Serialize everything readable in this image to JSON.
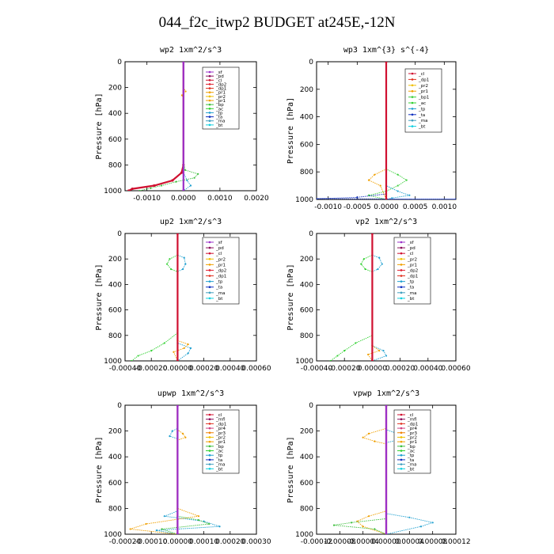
{
  "title": "044_f2c_itwp2  BUDGET at245E,-12N",
  "colors": {
    "sf": "#9b30c8",
    "pd": "#8a0c5a",
    "cl": "#d01030",
    "dp2": "#e02030",
    "dp1": "#e03020",
    "pr1": "#f0a000",
    "pr2": "#f0c000",
    "bp": "#40c040",
    "ac": "#30d030",
    "tp": "#20a0d0",
    "ta": "#1030c0",
    "ma": "#40a0c0",
    "bt": "#10d0e0",
    "bp1": "#40d040",
    "pr4": "#d04080",
    "pr3": "#f08000",
    "mfl": "#8a0c5a",
    "pr5": "#f0b040"
  },
  "chart_data": [
    {
      "type": "line",
      "title": "wp2   1xm^2/s^3",
      "ylabel": "Pressure [hPa]",
      "ylim": [
        1000,
        0
      ],
      "yticks": [
        0,
        200,
        400,
        600,
        800,
        1000
      ],
      "xlim": [
        -0.0016,
        0.002
      ],
      "xticks": [
        "-0.0010",
        "0.0000",
        "0.0010",
        "0.0020"
      ],
      "xtick_values": [
        -0.001,
        0,
        0.001,
        0.002
      ],
      "legend": [
        "_sf",
        "_pd",
        "_cl",
        "_dp2",
        "_dp1",
        "_pr1",
        "_pr2",
        "_pr1",
        "_bp",
        "_ac",
        "_tp",
        "_ta",
        "_ma",
        "_bt"
      ],
      "series": [
        {
          "key": "bp",
          "points": [
            [
              0,
              0
            ],
            [
              0,
              780
            ],
            [
              5e-05,
              840
            ],
            [
              0.0004,
              870
            ],
            [
              0.0003,
              900
            ],
            [
              -0.0002,
              930
            ],
            [
              -0.0006,
              960
            ],
            [
              -0.0009,
              980
            ],
            [
              -0.0012,
              1000
            ]
          ]
        },
        {
          "key": "cl",
          "points": [
            [
              0,
              0
            ],
            [
              0,
              800
            ],
            [
              -5e-05,
              860
            ],
            [
              -0.0003,
              920
            ],
            [
              -0.0008,
              960
            ],
            [
              -0.0014,
              985
            ],
            [
              -0.0015,
              1000
            ]
          ]
        },
        {
          "key": "tp",
          "points": [
            [
              0,
              0
            ],
            [
              0,
              860
            ],
            [
              0.0001,
              920
            ],
            [
              0.0002,
              960
            ],
            [
              0,
              1000
            ]
          ]
        },
        {
          "key": "pr1",
          "points": [
            [
              0,
              0
            ],
            [
              0,
              200
            ],
            [
              6e-05,
              230
            ],
            [
              -4e-05,
              260
            ],
            [
              0,
              290
            ],
            [
              0,
              1000
            ]
          ]
        },
        {
          "key": "sf",
          "points": [
            [
              0,
              0
            ],
            [
              0,
              1000
            ]
          ]
        }
      ]
    },
    {
      "type": "line",
      "title": "wp3   1xm^{3} s^{-4}",
      "ylabel": "Pressure [hPa]",
      "ylim": [
        1000,
        0
      ],
      "yticks": [
        0,
        200,
        400,
        600,
        800,
        1000
      ],
      "xlim": [
        -0.0012,
        0.0012
      ],
      "xticks": [
        "-0.0010",
        "-0.0005",
        "0.0000",
        "0.0005",
        "0.0010"
      ],
      "xtick_values": [
        -0.001,
        -0.0005,
        0,
        0.0005,
        0.001
      ],
      "legend": [
        "_cl",
        "_dp1",
        "_pr2",
        "_pr1",
        "_bp1",
        "_ac",
        "_tp",
        "_ta",
        "_ma",
        "_bt"
      ],
      "series": [
        {
          "key": "bp1",
          "points": [
            [
              0,
              0
            ],
            [
              0,
              780
            ],
            [
              0.0002,
              820
            ],
            [
              0.00035,
              860
            ],
            [
              0.0002,
              900
            ],
            [
              0,
              940
            ],
            [
              -0.0003,
              970
            ],
            [
              0,
              1000
            ]
          ]
        },
        {
          "key": "pr1",
          "points": [
            [
              0,
              0
            ],
            [
              0,
              780
            ],
            [
              -0.0002,
              820
            ],
            [
              -0.0003,
              860
            ],
            [
              -0.0001,
              900
            ],
            [
              0,
              1000
            ]
          ]
        },
        {
          "key": "tp",
          "points": [
            [
              0,
              0
            ],
            [
              0,
              900
            ],
            [
              0.0002,
              940
            ],
            [
              0.0004,
              970
            ],
            [
              0.0001,
              990
            ],
            [
              0,
              1000
            ]
          ]
        },
        {
          "key": "ta",
          "points": [
            [
              0,
              0
            ],
            [
              0,
              960
            ],
            [
              -0.0005,
              985
            ],
            [
              -0.0012,
              995
            ],
            [
              0.0012,
              998
            ],
            [
              0,
              1000
            ]
          ]
        },
        {
          "key": "cl",
          "points": [
            [
              0,
              0
            ],
            [
              0,
              1000
            ]
          ]
        }
      ]
    },
    {
      "type": "line",
      "title": "up2   1xm^2/s^3",
      "ylabel": "Pressure [hPa]",
      "ylim": [
        1000,
        0
      ],
      "yticks": [
        0,
        200,
        400,
        600,
        800,
        1000
      ],
      "xlim": [
        -0.0004,
        0.0006
      ],
      "xticks": [
        "-0.00040",
        "-0.00020",
        "0.00000",
        "0.00020",
        "0.00040",
        "0.00060"
      ],
      "xtick_values": [
        -0.0004,
        -0.0002,
        0,
        0.0002,
        0.0004,
        0.0006
      ],
      "legend": [
        "_sf",
        "_pd",
        "_cl",
        "_pr2",
        "_pr1",
        "_dp2",
        "_dp1",
        "_tp",
        "_ta",
        "_ma",
        "_bt"
      ],
      "series": [
        {
          "key": "ac",
          "points": [
            [
              0,
              0
            ],
            [
              0,
              170
            ],
            [
              -6e-05,
              200
            ],
            [
              -8e-05,
              240
            ],
            [
              -5e-05,
              280
            ],
            [
              0,
              300
            ],
            [
              0,
              780
            ],
            [
              -0.0001,
              860
            ],
            [
              -0.0002,
              920
            ],
            [
              -0.0003,
              960
            ],
            [
              -0.00035,
              1000
            ]
          ]
        },
        {
          "key": "tp",
          "points": [
            [
              0,
              0
            ],
            [
              0,
              170
            ],
            [
              5e-05,
              190
            ],
            [
              6e-05,
              240
            ],
            [
              4e-05,
              280
            ],
            [
              0,
              300
            ],
            [
              0,
              860
            ],
            [
              0.0001,
              900
            ],
            [
              8e-05,
              940
            ],
            [
              0,
              1000
            ]
          ]
        },
        {
          "key": "pr1",
          "points": [
            [
              0,
              0
            ],
            [
              0,
              840
            ],
            [
              8e-05,
              870
            ],
            [
              5e-05,
              900
            ],
            [
              -3e-05,
              930
            ],
            [
              0,
              1000
            ]
          ]
        },
        {
          "key": "cl",
          "points": [
            [
              0,
              0
            ],
            [
              0,
              1000
            ]
          ]
        }
      ]
    },
    {
      "type": "line",
      "title": "vp2   1xm^2/s^3",
      "ylabel": "Pressure [hPa]",
      "ylim": [
        1000,
        0
      ],
      "yticks": [
        0,
        200,
        400,
        600,
        800,
        1000
      ],
      "xlim": [
        -0.0004,
        0.0006
      ],
      "xticks": [
        "-0.00040",
        "-0.00020",
        "0.00000",
        "0.00020",
        "0.00040",
        "0.00060"
      ],
      "xtick_values": [
        -0.0004,
        -0.0002,
        0,
        0.0002,
        0.0004,
        0.0006
      ],
      "legend": [
        "_sf",
        "_pd",
        "_cl",
        "_pr2",
        "_pr1",
        "_dp2",
        "_dp1",
        "_tp",
        "_ta",
        "_ma",
        "_bt"
      ],
      "series": [
        {
          "key": "ac",
          "points": [
            [
              0,
              0
            ],
            [
              0,
              170
            ],
            [
              -6e-05,
              200
            ],
            [
              -8e-05,
              240
            ],
            [
              -5e-05,
              280
            ],
            [
              0,
              300
            ],
            [
              0,
              800
            ],
            [
              -0.00012,
              860
            ],
            [
              -0.0002,
              920
            ],
            [
              -0.00025,
              960
            ],
            [
              -0.0003,
              1000
            ]
          ]
        },
        {
          "key": "tp",
          "points": [
            [
              0,
              0
            ],
            [
              0,
              170
            ],
            [
              5e-05,
              190
            ],
            [
              7e-05,
              240
            ],
            [
              4e-05,
              280
            ],
            [
              0,
              300
            ],
            [
              0,
              880
            ],
            [
              8e-05,
              920
            ],
            [
              0.0001,
              960
            ],
            [
              0,
              1000
            ]
          ]
        },
        {
          "key": "pr1",
          "points": [
            [
              0,
              0
            ],
            [
              0,
              880
            ],
            [
              5e-05,
              920
            ],
            [
              -3e-05,
              950
            ],
            [
              0,
              1000
            ]
          ]
        },
        {
          "key": "cl",
          "points": [
            [
              0,
              0
            ],
            [
              0,
              1000
            ]
          ]
        }
      ]
    },
    {
      "type": "line",
      "title": "upwp   1xm^2/s^3",
      "ylabel": "Pressure [hPa]",
      "ylim": [
        1000,
        0
      ],
      "yticks": [
        0,
        200,
        400,
        600,
        800,
        1000
      ],
      "xlim": [
        -0.0002,
        0.0003
      ],
      "xticks": [
        "-0.00020",
        "-0.00010",
        "0.00000",
        "0.00010",
        "0.00020",
        "0.00030"
      ],
      "xtick_values": [
        -0.0002,
        -0.0001,
        0,
        0.0001,
        0.0002,
        0.0003
      ],
      "legend": [
        "_cl",
        "_mfl",
        "_dp1",
        "_pr4",
        "_pr3",
        "_pr2",
        "_pr1",
        "_bp",
        "_ac",
        "_tp",
        "_ta",
        "_ma",
        "_bt"
      ],
      "series": [
        {
          "key": "tp",
          "points": [
            [
              0,
              0
            ],
            [
              0,
              180
            ],
            [
              -2e-05,
              200
            ],
            [
              -3e-05,
              240
            ],
            [
              0,
              260
            ],
            [
              0,
              820
            ],
            [
              -5e-05,
              860
            ],
            [
              0.0001,
              900
            ],
            [
              0.00016,
              940
            ],
            [
              -8e-05,
              970
            ],
            [
              0,
              1000
            ]
          ]
        },
        {
          "key": "pr1",
          "points": [
            [
              0,
              0
            ],
            [
              0,
              190
            ],
            [
              2e-05,
              220
            ],
            [
              3e-05,
              250
            ],
            [
              0,
              270
            ],
            [
              0,
              800
            ],
            [
              8e-05,
              860
            ],
            [
              -0.00012,
              920
            ],
            [
              -0.00018,
              960
            ],
            [
              0,
              1000
            ]
          ]
        },
        {
          "key": "bp",
          "points": [
            [
              0,
              0
            ],
            [
              0,
              860
            ],
            [
              8e-05,
              890
            ],
            [
              0.00012,
              920
            ],
            [
              -6e-05,
              960
            ],
            [
              0,
              1000
            ]
          ]
        },
        {
          "key": "cl",
          "points": [
            [
              0,
              0
            ],
            [
              0,
              1000
            ]
          ]
        },
        {
          "key": "sf",
          "points": [
            [
              0,
              0
            ],
            [
              0,
              1000
            ]
          ]
        }
      ]
    },
    {
      "type": "line",
      "title": "vpwp   1xm^2/s^3",
      "ylabel": "Pressure [hPa]",
      "ylim": [
        1000,
        0
      ],
      "yticks": [
        0,
        200,
        400,
        600,
        800,
        1000
      ],
      "xlim": [
        -0.00012,
        0.00012
      ],
      "xticks": [
        "-0.00012",
        "-0.00008",
        "-0.00004",
        "0.00000",
        "0.00004",
        "0.00008",
        "0.00012"
      ],
      "xtick_values": [
        -0.00012,
        -8e-05,
        -4e-05,
        0,
        4e-05,
        8e-05,
        0.00012
      ],
      "legend": [
        "_cl",
        "_mfl",
        "_dp1",
        "_pr4",
        "_pr3",
        "_pr2",
        "_pr1",
        "_bp",
        "_ac",
        "_tp",
        "_ta",
        "_ma",
        "_bt"
      ],
      "series": [
        {
          "key": "pr1",
          "points": [
            [
              0,
              0
            ],
            [
              0,
              180
            ],
            [
              -3e-05,
              220
            ],
            [
              -4e-05,
              250
            ],
            [
              -2e-05,
              280
            ],
            [
              0,
              300
            ],
            [
              0,
              820
            ],
            [
              -3e-05,
              860
            ],
            [
              -5e-05,
              900
            ],
            [
              -4e-05,
              940
            ],
            [
              0,
              1000
            ]
          ]
        },
        {
          "key": "tp",
          "points": [
            [
              0,
              0
            ],
            [
              0,
              190
            ],
            [
              2e-05,
              220
            ],
            [
              3e-05,
              260
            ],
            [
              0,
              290
            ],
            [
              0,
              840
            ],
            [
              4e-05,
              870
            ],
            [
              8e-05,
              910
            ],
            [
              6e-05,
              940
            ],
            [
              0,
              1000
            ]
          ]
        },
        {
          "key": "bp",
          "points": [
            [
              0,
              0
            ],
            [
              0,
              880
            ],
            [
              -6e-05,
              910
            ],
            [
              -9e-05,
              930
            ],
            [
              -2e-05,
              960
            ],
            [
              0,
              1000
            ]
          ]
        },
        {
          "key": "cl",
          "points": [
            [
              0,
              0
            ],
            [
              0,
              1000
            ]
          ]
        },
        {
          "key": "sf",
          "points": [
            [
              0,
              0
            ],
            [
              0,
              1000
            ]
          ]
        }
      ]
    }
  ]
}
